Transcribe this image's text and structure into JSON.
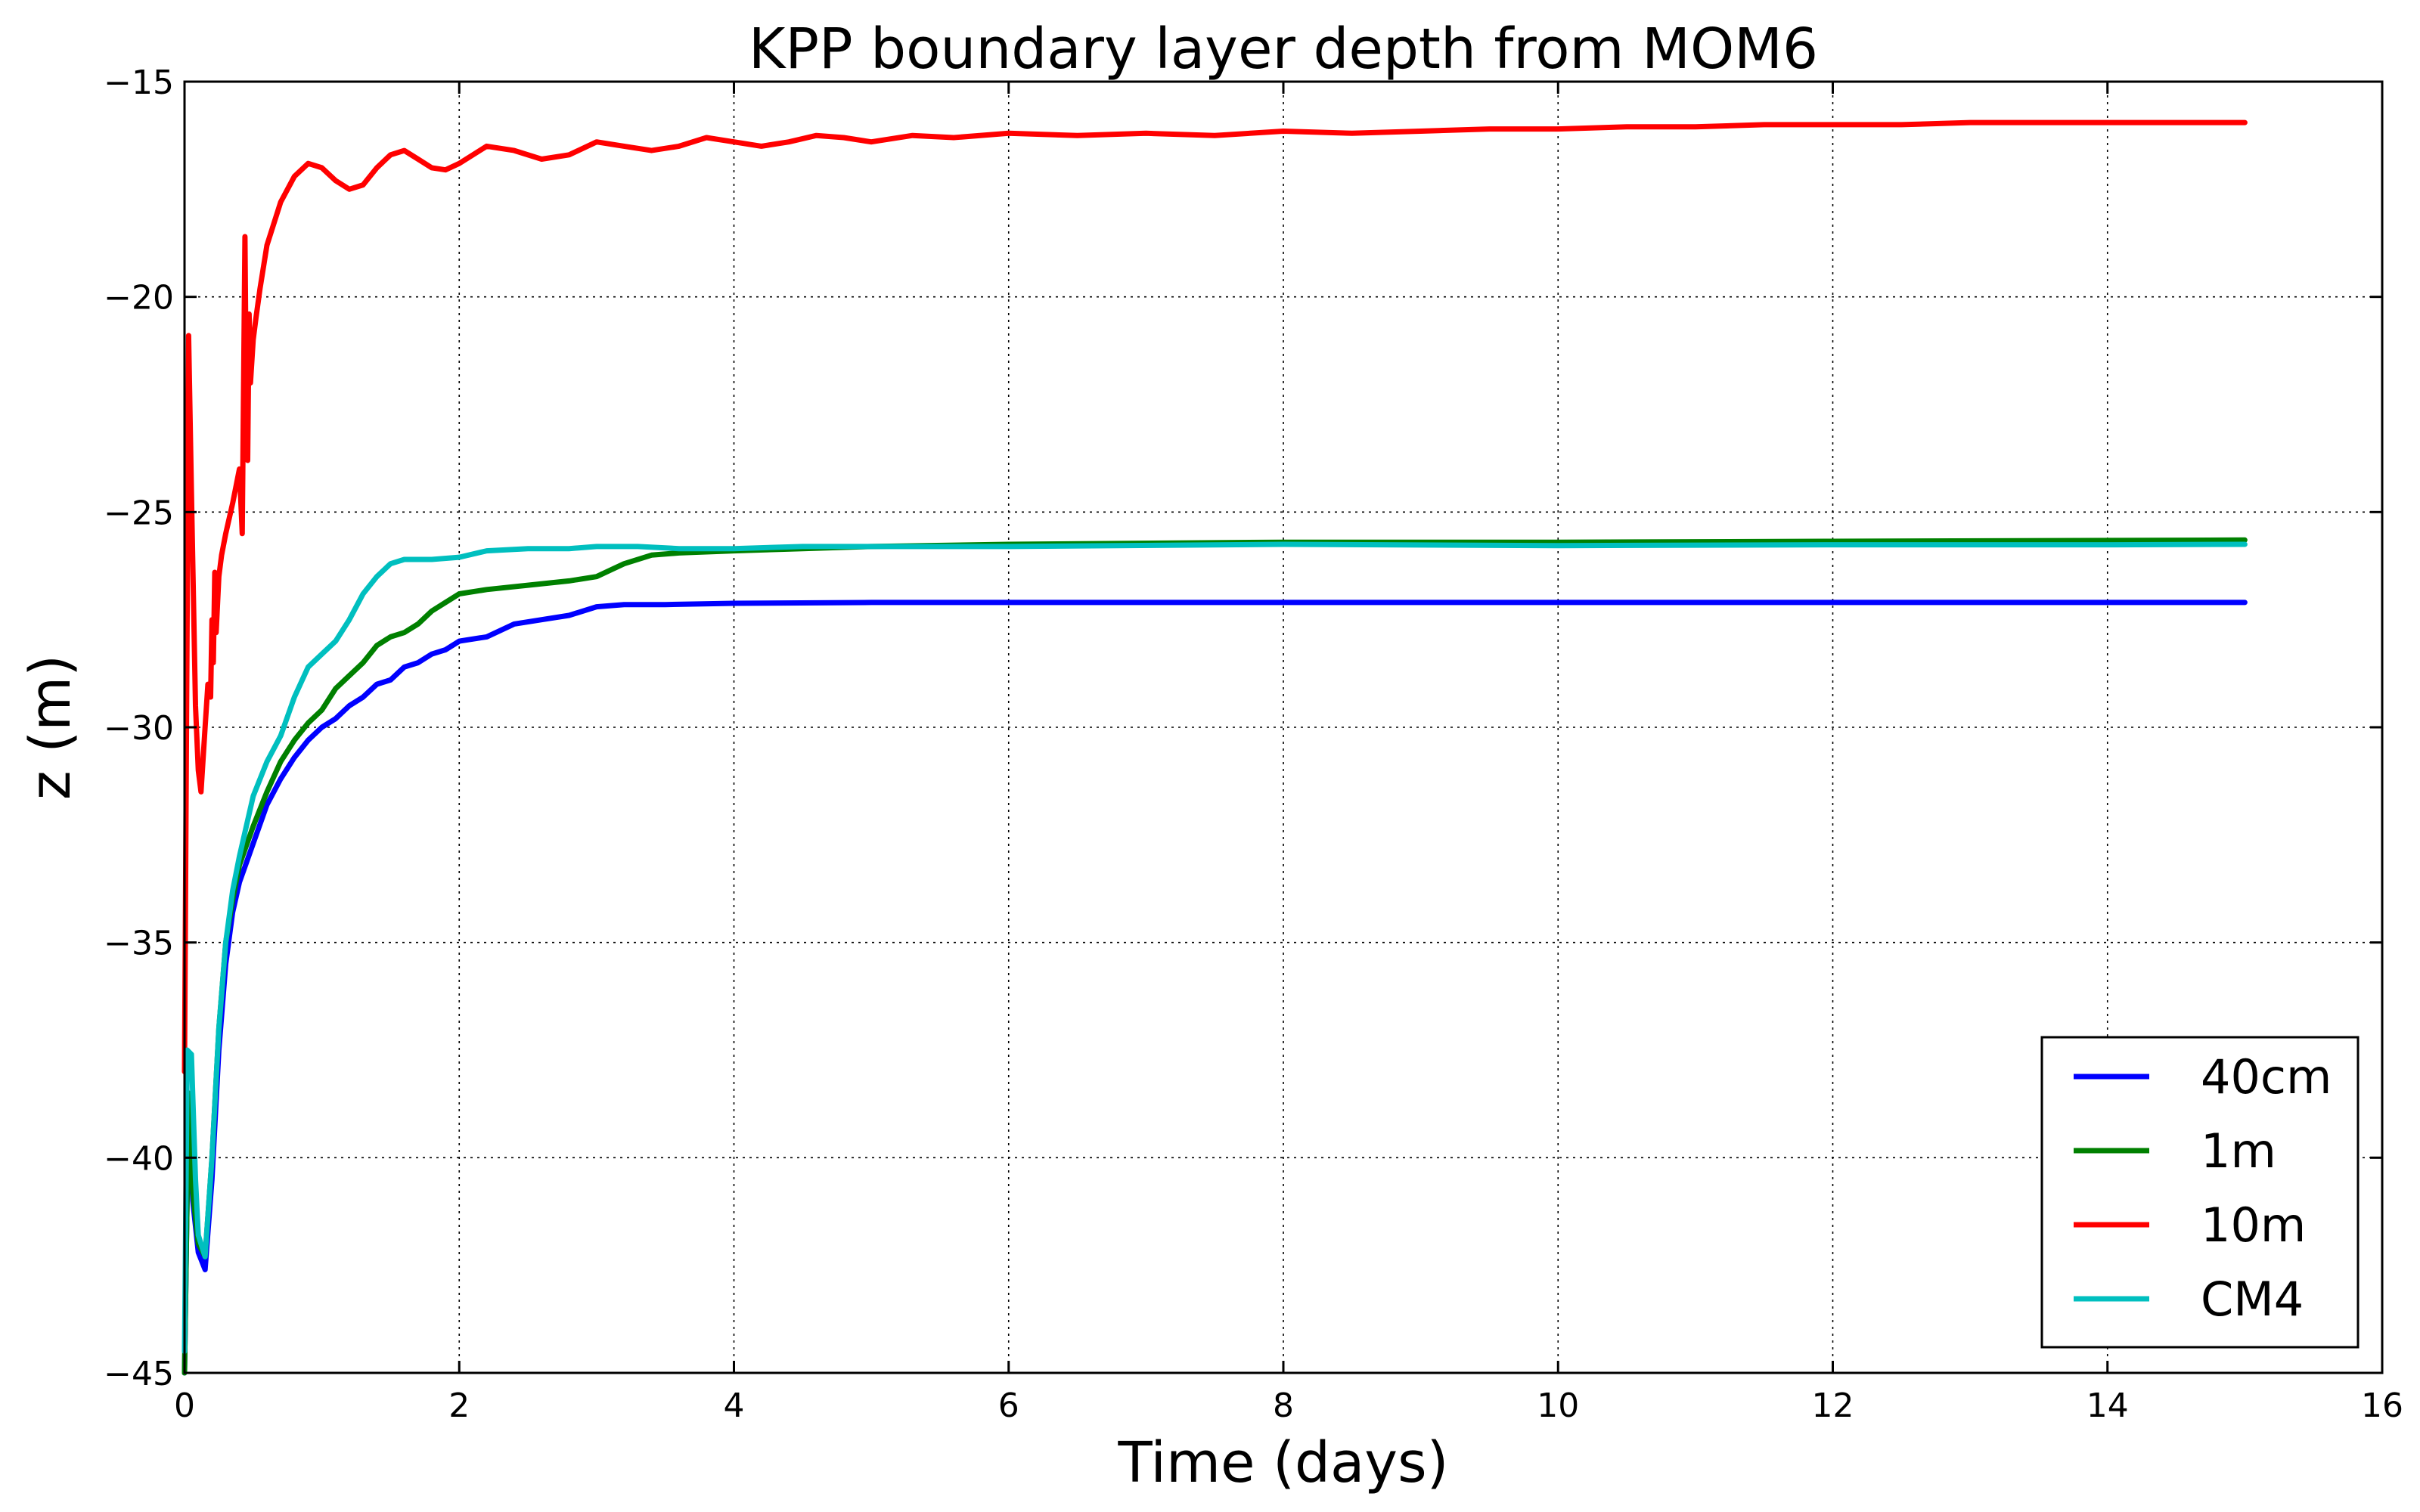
{
  "chart_data": {
    "type": "line",
    "title": "KPP boundary layer depth from MOM6",
    "xlabel": "Time (days)",
    "ylabel": "z (m)",
    "xlim": [
      0,
      16
    ],
    "ylim": [
      -45,
      -15
    ],
    "xticks": [
      0,
      2,
      4,
      6,
      8,
      10,
      12,
      14,
      16
    ],
    "yticks": [
      -45,
      -40,
      -35,
      -30,
      -25,
      -20,
      -15
    ],
    "xtick_labels": [
      "0",
      "2",
      "4",
      "6",
      "8",
      "10",
      "12",
      "14",
      "16"
    ],
    "ytick_labels": [
      "−45",
      "−40",
      "−35",
      "−30",
      "−25",
      "−20",
      "−15"
    ],
    "grid": true,
    "legend_position": "lower-right",
    "series": [
      {
        "name": "40cm",
        "color": "#0000ff",
        "x": [
          0.0,
          0.03,
          0.06,
          0.1,
          0.15,
          0.2,
          0.25,
          0.3,
          0.35,
          0.4,
          0.5,
          0.6,
          0.7,
          0.8,
          0.9,
          1.0,
          1.1,
          1.2,
          1.3,
          1.4,
          1.5,
          1.6,
          1.7,
          1.8,
          1.9,
          2.0,
          2.2,
          2.4,
          2.6,
          2.8,
          3.0,
          3.2,
          3.5,
          4.0,
          5.0,
          6.0,
          8.0,
          10.0,
          12.0,
          14.0,
          15.0
        ],
        "y": [
          -45.0,
          -38.5,
          -41.0,
          -42.2,
          -42.6,
          -40.5,
          -37.5,
          -35.5,
          -34.3,
          -33.6,
          -32.7,
          -31.8,
          -31.2,
          -30.7,
          -30.3,
          -30.0,
          -29.8,
          -29.5,
          -29.3,
          -29.0,
          -28.9,
          -28.6,
          -28.5,
          -28.3,
          -28.2,
          -28.0,
          -27.9,
          -27.6,
          -27.5,
          -27.4,
          -27.2,
          -27.15,
          -27.15,
          -27.12,
          -27.1,
          -27.1,
          -27.1,
          -27.1,
          -27.1,
          -27.1,
          -27.1
        ]
      },
      {
        "name": "1m",
        "color": "#008000",
        "x": [
          0.0,
          0.03,
          0.06,
          0.1,
          0.15,
          0.2,
          0.25,
          0.3,
          0.35,
          0.4,
          0.5,
          0.6,
          0.7,
          0.8,
          0.9,
          1.0,
          1.1,
          1.2,
          1.3,
          1.4,
          1.5,
          1.6,
          1.7,
          1.8,
          1.9,
          2.0,
          2.2,
          2.5,
          2.8,
          3.0,
          3.1,
          3.2,
          3.4,
          3.6,
          4.0,
          4.5,
          5.0,
          6.0,
          8.0,
          10.0,
          12.0,
          14.0,
          15.0
        ],
        "y": [
          -45.0,
          -38.5,
          -40.8,
          -42.0,
          -42.3,
          -40.0,
          -37.0,
          -35.0,
          -34.0,
          -33.2,
          -32.3,
          -31.5,
          -30.8,
          -30.3,
          -29.9,
          -29.6,
          -29.1,
          -28.8,
          -28.5,
          -28.1,
          -27.9,
          -27.8,
          -27.6,
          -27.3,
          -27.1,
          -26.9,
          -26.8,
          -26.7,
          -26.6,
          -26.5,
          -26.35,
          -26.2,
          -26.0,
          -25.95,
          -25.9,
          -25.85,
          -25.8,
          -25.75,
          -25.7,
          -25.7,
          -25.68,
          -25.66,
          -25.65
        ]
      },
      {
        "name": "10m",
        "color": "#ff0000",
        "x": [
          0.0,
          0.02,
          0.03,
          0.05,
          0.08,
          0.1,
          0.12,
          0.15,
          0.17,
          0.19,
          0.2,
          0.21,
          0.22,
          0.23,
          0.25,
          0.27,
          0.3,
          0.35,
          0.4,
          0.42,
          0.44,
          0.45,
          0.46,
          0.47,
          0.48,
          0.5,
          0.52,
          0.55,
          0.6,
          0.7,
          0.8,
          0.9,
          1.0,
          1.1,
          1.2,
          1.3,
          1.4,
          1.5,
          1.6,
          1.7,
          1.8,
          1.9,
          2.0,
          2.1,
          2.2,
          2.4,
          2.6,
          2.8,
          3.0,
          3.2,
          3.4,
          3.6,
          3.8,
          4.0,
          4.2,
          4.4,
          4.6,
          4.8,
          5.0,
          5.3,
          5.6,
          6.0,
          6.5,
          7.0,
          7.5,
          8.0,
          8.5,
          9.0,
          9.5,
          10.0,
          10.5,
          11.0,
          11.5,
          12.0,
          12.5,
          13.0,
          13.5,
          14.0,
          14.5,
          15.0
        ],
        "y": [
          -38.0,
          -27.0,
          -20.9,
          -24.5,
          -29.5,
          -31.0,
          -31.5,
          -30.0,
          -29.0,
          -29.3,
          -27.5,
          -28.5,
          -26.4,
          -27.8,
          -26.5,
          -26.0,
          -25.5,
          -24.8,
          -24.0,
          -25.5,
          -18.6,
          -22.5,
          -23.8,
          -20.4,
          -22.0,
          -21.0,
          -20.5,
          -19.8,
          -18.8,
          -17.8,
          -17.2,
          -16.9,
          -17.0,
          -17.3,
          -17.5,
          -17.4,
          -17.0,
          -16.7,
          -16.6,
          -16.8,
          -17.0,
          -17.05,
          -16.9,
          -16.7,
          -16.5,
          -16.6,
          -16.8,
          -16.7,
          -16.4,
          -16.5,
          -16.6,
          -16.5,
          -16.3,
          -16.4,
          -16.5,
          -16.4,
          -16.25,
          -16.3,
          -16.4,
          -16.25,
          -16.3,
          -16.2,
          -16.25,
          -16.2,
          -16.25,
          -16.15,
          -16.2,
          -16.15,
          -16.1,
          -16.1,
          -16.05,
          -16.05,
          -16.0,
          -16.0,
          -16.0,
          -15.95,
          -15.95,
          -15.95,
          -15.95,
          -15.95
        ]
      },
      {
        "name": "CM4",
        "color": "#00bfbf",
        "x": [
          0.0,
          0.02,
          0.05,
          0.08,
          0.1,
          0.15,
          0.2,
          0.25,
          0.3,
          0.35,
          0.4,
          0.5,
          0.6,
          0.7,
          0.8,
          0.9,
          1.0,
          1.1,
          1.2,
          1.3,
          1.4,
          1.5,
          1.6,
          1.8,
          2.0,
          2.2,
          2.5,
          2.8,
          3.0,
          3.3,
          3.6,
          4.0,
          4.5,
          5.0,
          6.0,
          8.0,
          10.0,
          12.0,
          14.0,
          15.0
        ],
        "y": [
          -44.5,
          -37.5,
          -37.6,
          -40.5,
          -41.8,
          -42.3,
          -40.0,
          -37.0,
          -35.0,
          -33.8,
          -33.0,
          -31.6,
          -30.8,
          -30.2,
          -29.3,
          -28.6,
          -28.3,
          -28.0,
          -27.5,
          -26.9,
          -26.5,
          -26.2,
          -26.1,
          -26.1,
          -26.05,
          -25.9,
          -25.85,
          -25.85,
          -25.8,
          -25.8,
          -25.85,
          -25.85,
          -25.8,
          -25.8,
          -25.8,
          -25.75,
          -25.78,
          -25.76,
          -25.76,
          -25.75
        ]
      }
    ]
  }
}
